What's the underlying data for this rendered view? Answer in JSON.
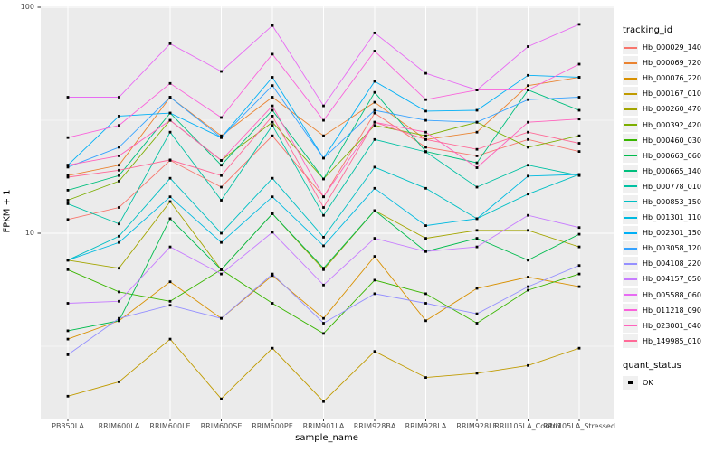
{
  "chart_data": {
    "type": "line",
    "title": "",
    "xlabel": "sample_name",
    "ylabel": "FPKM + 1",
    "y_scale": "log10",
    "ylim": [
      1.45,
      101
    ],
    "y_ticks": [
      "100",
      "10"
    ],
    "y_tick_values": [
      100,
      10
    ],
    "grid": {
      "major_y": [
        100,
        10
      ],
      "minor_y": [
        31.62,
        3.162
      ],
      "vertical_per_category": true
    },
    "legend_position": "right",
    "categories": [
      "PB350LA",
      "RRIM600LA",
      "RRIM600LE",
      "RRIM600SE",
      "RRIM600PE",
      "RRIM901LA",
      "RRIM928BA",
      "RRIM928LA",
      "RRIM928LE",
      "RRII105LA_Control",
      "RRII105LA_Stressed"
    ],
    "series": [
      {
        "name": "Hb_000029_140",
        "color": "#F8766D",
        "values": [
          11.5,
          13,
          21,
          16,
          27,
          14.5,
          34,
          24,
          22,
          26,
          23
        ]
      },
      {
        "name": "Hb_000069_720",
        "color": "#EA8331",
        "values": [
          18,
          20,
          40,
          27,
          40,
          27,
          38,
          26,
          28,
          45,
          49
        ]
      },
      {
        "name": "Hb_000076_220",
        "color": "#D89000",
        "values": [
          3.4,
          4.1,
          6.1,
          4.2,
          6.5,
          4.2,
          7.9,
          4.1,
          5.7,
          6.4,
          5.8
        ]
      },
      {
        "name": "Hb_000167_010",
        "color": "#C09B00",
        "values": [
          1.9,
          2.2,
          3.4,
          1.85,
          3.1,
          1.8,
          3.0,
          2.3,
          2.4,
          2.6,
          3.1
        ]
      },
      {
        "name": "Hb_000260_470",
        "color": "#A3A500",
        "values": [
          7.6,
          7.0,
          13.8,
          6.9,
          12.2,
          6.9,
          12.6,
          9.5,
          10.3,
          10.3,
          8.7
        ]
      },
      {
        "name": "Hb_000392_420",
        "color": "#7CAE00",
        "values": [
          14,
          17,
          31.6,
          21,
          31,
          17.4,
          30,
          27,
          31,
          24,
          27
        ]
      },
      {
        "name": "Hb_000460_030",
        "color": "#39B600",
        "values": [
          6.9,
          5.5,
          5.0,
          6.9,
          4.9,
          3.6,
          6.2,
          5.4,
          4.0,
          5.6,
          6.6
        ]
      },
      {
        "name": "Hb_000663_060",
        "color": "#00BB4E",
        "values": [
          3.7,
          4.1,
          11.6,
          6.9,
          12.2,
          7.0,
          12.6,
          8.3,
          9.5,
          7.6,
          9.9
        ]
      },
      {
        "name": "Hb_000665_140",
        "color": "#00BF7D",
        "values": [
          15.5,
          18,
          34,
          20,
          35,
          17.4,
          42,
          23,
          20.5,
          43,
          35
        ]
      },
      {
        "name": "Hb_000778_010",
        "color": "#00C1A3",
        "values": [
          13.5,
          11,
          28,
          14,
          30,
          12,
          26,
          22.9,
          16,
          20,
          18
        ]
      },
      {
        "name": "Hb_000853_150",
        "color": "#00BFC4",
        "values": [
          7.6,
          9.7,
          17.5,
          10,
          17.5,
          9.6,
          19.6,
          15.8,
          11.6,
          14.9,
          18.2
        ]
      },
      {
        "name": "Hb_001301_110",
        "color": "#00BAE0",
        "values": [
          7.6,
          9.1,
          14.5,
          9.1,
          14.5,
          8.8,
          15.8,
          10.8,
          11.6,
          17.9,
          18.2
        ]
      },
      {
        "name": "Hb_002301_150",
        "color": "#00B0F6",
        "values": [
          20,
          33,
          34,
          26.5,
          49,
          21.5,
          47,
          34.7,
          35,
          50,
          49
        ]
      },
      {
        "name": "Hb_003058_120",
        "color": "#35A2FF",
        "values": [
          19.6,
          24,
          40,
          26.5,
          45,
          21.5,
          35,
          31.6,
          31,
          39,
          40
        ]
      },
      {
        "name": "Hb_004108_220",
        "color": "#9590FF",
        "values": [
          2.9,
          4.2,
          4.8,
          4.2,
          6.6,
          4.0,
          5.4,
          4.9,
          4.4,
          5.8,
          7.2
        ]
      },
      {
        "name": "Hb_004157_050",
        "color": "#C77CFF",
        "values": [
          4.9,
          5.0,
          8.7,
          6.6,
          10.1,
          5.9,
          9.5,
          8.3,
          8.7,
          12.0,
          10.6
        ]
      },
      {
        "name": "Hb_005588_060",
        "color": "#E76BF3",
        "values": [
          40,
          40,
          69,
          52,
          83,
          36.6,
          77,
          51,
          43,
          67,
          84
        ]
      },
      {
        "name": "Hb_011218_090",
        "color": "#FA62DB",
        "values": [
          26.5,
          30,
          46,
          32.5,
          62,
          31.6,
          64,
          39,
          43,
          43,
          56
        ]
      },
      {
        "name": "Hb_023001_040",
        "color": "#FF62BC",
        "values": [
          20,
          22,
          31.6,
          21,
          36.6,
          14.5,
          31,
          28,
          19.5,
          31,
          32
        ]
      },
      {
        "name": "Hb_149985_010",
        "color": "#FF6A98",
        "values": [
          17.7,
          19,
          21.1,
          18,
          33,
          13,
          31,
          26,
          23.5,
          28,
          25
        ]
      }
    ],
    "point_marker": "black-square",
    "legend": {
      "tracking_title": "tracking_id",
      "quant_title": "quant_status",
      "quant_items": [
        {
          "label": "OK",
          "symbol": "black-square"
        }
      ]
    }
  },
  "colors": {
    "panel_bg": "#EBEBEB",
    "grid": "#FFFFFF",
    "axis_text": "#4D4D4D",
    "tick_mark": "#333333",
    "point": "#000000",
    "legend_key_bg": "#F0F0F0"
  }
}
